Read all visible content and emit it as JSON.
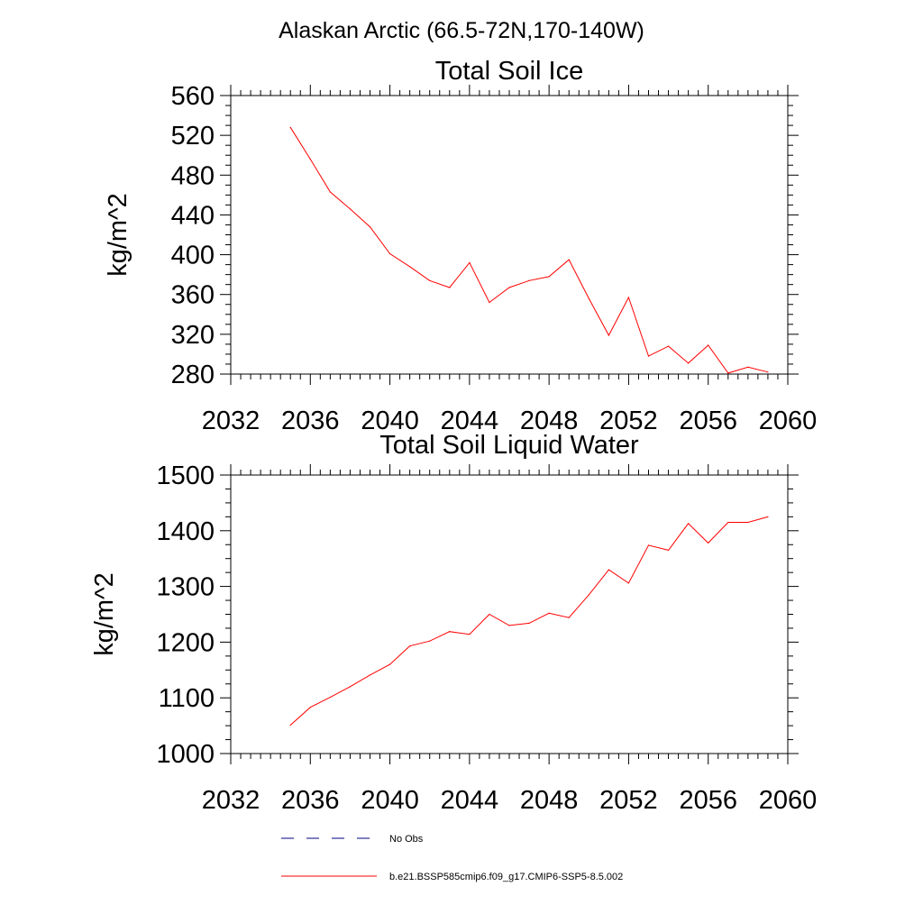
{
  "figure_title": "Alaskan Arctic (66.5-72N,170-140W)",
  "colors": {
    "model": "#ff0000",
    "obs": "#000080",
    "axis": "#000000"
  },
  "legend": [
    {
      "label": "No Obs",
      "style": "dashed",
      "color": "#000080"
    },
    {
      "label": "b.e21.BSSP585cmip6.f09_g17.CMIP6-SSP5-8.5.002",
      "style": "solid",
      "color": "#ff0000"
    }
  ],
  "chart_data": [
    {
      "type": "line",
      "title": "Total Soil Ice",
      "xlabel": "",
      "ylabel": "kg/m^2",
      "xlim": [
        2032,
        2060
      ],
      "ylim": [
        280,
        560
      ],
      "xticks": [
        2032,
        2036,
        2040,
        2044,
        2048,
        2052,
        2056,
        2060
      ],
      "yticks": [
        280,
        320,
        360,
        400,
        440,
        480,
        520,
        560
      ],
      "xticklabels": [
        "2032",
        "2036",
        "2040",
        "2044",
        "2048",
        "2052",
        "2056",
        "2060"
      ],
      "yticklabels": [
        "280",
        "320",
        "360",
        "400",
        "440",
        "480",
        "520",
        "560"
      ],
      "grid": false,
      "series": [
        {
          "color": "#ff0000",
          "x": [
            2035,
            2036,
            2037,
            2038,
            2039,
            2040,
            2041,
            2042,
            2043,
            2044,
            2045,
            2046,
            2047,
            2048,
            2049,
            2050,
            2051,
            2052,
            2053,
            2054,
            2055,
            2056,
            2057,
            2058,
            2059
          ],
          "y": [
            528,
            496,
            463,
            446,
            428,
            401,
            388,
            374,
            367,
            392,
            352,
            367,
            374,
            378,
            395,
            356,
            319,
            357,
            298,
            308,
            291,
            309,
            281,
            287,
            282
          ]
        }
      ]
    },
    {
      "type": "line",
      "title": "Total Soil Liquid Water",
      "xlabel": "",
      "ylabel": "kg/m^2",
      "xlim": [
        2032,
        2060
      ],
      "ylim": [
        1000,
        1500
      ],
      "xticks": [
        2032,
        2036,
        2040,
        2044,
        2048,
        2052,
        2056,
        2060
      ],
      "yticks": [
        1000,
        1100,
        1200,
        1300,
        1400,
        1500
      ],
      "xticklabels": [
        "2032",
        "2036",
        "2040",
        "2044",
        "2048",
        "2052",
        "2056",
        "2060"
      ],
      "yticklabels": [
        "1000",
        "1100",
        "1200",
        "1300",
        "1400",
        "1500"
      ],
      "grid": false,
      "series": [
        {
          "color": "#ff0000",
          "x": [
            2035,
            2036,
            2037,
            2038,
            2039,
            2040,
            2041,
            2042,
            2043,
            2044,
            2045,
            2046,
            2047,
            2048,
            2049,
            2050,
            2051,
            2052,
            2053,
            2054,
            2055,
            2056,
            2057,
            2058,
            2059
          ],
          "y": [
            1051,
            1083,
            1101,
            1120,
            1141,
            1160,
            1193,
            1202,
            1219,
            1214,
            1250,
            1230,
            1234,
            1252,
            1244,
            1285,
            1330,
            1306,
            1374,
            1365,
            1413,
            1378,
            1415,
            1415,
            1425
          ]
        }
      ]
    }
  ]
}
